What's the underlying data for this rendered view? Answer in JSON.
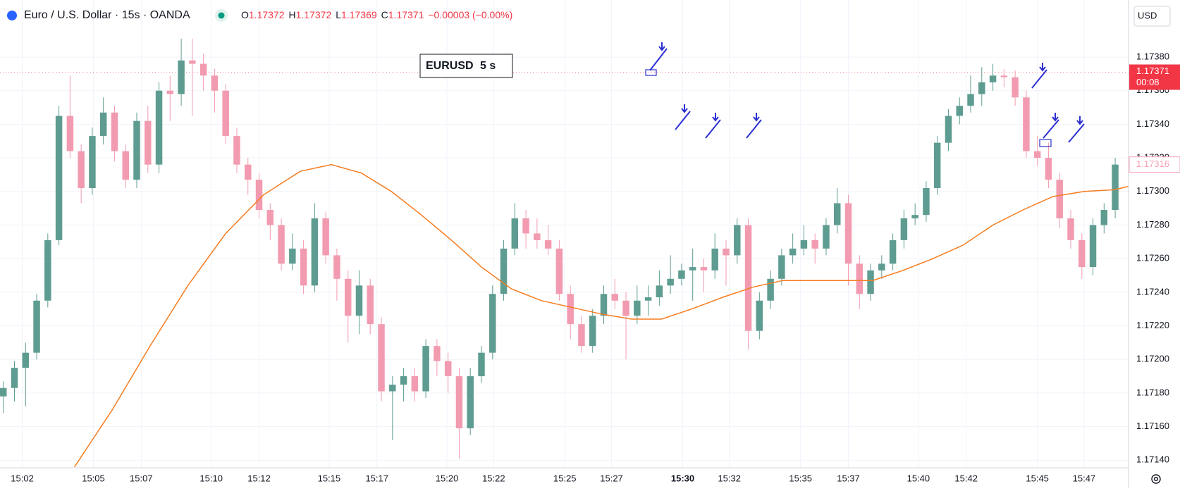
{
  "chart_data": {
    "type": "candlestick",
    "title": "Euro / U.S. Dollar · 15s · OANDA",
    "legend_items": [
      {
        "key": "O",
        "value": "1.17372"
      },
      {
        "key": "H",
        "value": "1.17372"
      },
      {
        "key": "L",
        "value": "1.17369"
      },
      {
        "key": "C",
        "value": "1.17371"
      }
    ],
    "change": "−0.00003 (−0.00%)",
    "currency": "USD",
    "inset": {
      "symbol": "EURUSD",
      "interval": "5 s"
    },
    "up_color": "#5e9c91",
    "down_color": "#f29bb0",
    "open": [
      1.17178,
      1.17183,
      1.17195,
      1.17204,
      1.17235,
      1.17271,
      1.17345,
      1.17324,
      1.17302,
      1.17333,
      1.17347,
      1.17324,
      1.17307,
      1.17342,
      1.17316,
      1.1736,
      1.17358,
      1.17378,
      1.17376,
      1.17369,
      1.1736,
      1.17333,
      1.17316,
      1.17307,
      1.17289,
      1.1728,
      1.17257,
      1.17266,
      1.17244,
      1.17284,
      1.17262,
      1.17248,
      1.17226,
      1.17244,
      1.17221,
      1.17181,
      1.17185,
      1.1719,
      1.17181,
      1.17208,
      1.17199,
      1.1719,
      1.17159,
      1.1719,
      1.17204,
      1.17239,
      1.17266,
      1.17284,
      1.17275,
      1.17271,
      1.17266,
      1.17239,
      1.17221,
      1.17208,
      1.17226,
      1.17239,
      1.17235,
      1.17226,
      1.17235,
      1.17237,
      1.17244,
      1.17248,
      1.17253,
      1.17255,
      1.17253,
      1.17266,
      1.17262,
      1.1728,
      1.17217,
      1.17235,
      1.17248,
      1.17262,
      1.17266,
      1.17271,
      1.17266,
      1.1728,
      1.17293,
      1.17257,
      1.17239,
      1.17253,
      1.17257,
      1.17271,
      1.17284,
      1.17286,
      1.17302,
      1.17329,
      1.17345,
      1.17351,
      1.17358,
      1.17365,
      1.17369,
      1.17368,
      1.17356,
      1.17324,
      1.1732,
      1.17307,
      1.17284,
      1.17271,
      1.17255,
      1.1728,
      1.17289
    ],
    "high": [
      1.17187,
      1.17199,
      1.1721,
      1.17239,
      1.17275,
      1.17351,
      1.17369,
      1.17328,
      1.17338,
      1.17356,
      1.17351,
      1.17328,
      1.17347,
      1.17351,
      1.17365,
      1.17369,
      1.17391,
      1.17391,
      1.17382,
      1.17373,
      1.17364,
      1.17338,
      1.1732,
      1.17311,
      1.17293,
      1.17284,
      1.17275,
      1.17271,
      1.17293,
      1.17288,
      1.17266,
      1.17253,
      1.17253,
      1.17248,
      1.17225,
      1.1719,
      1.17195,
      1.17195,
      1.17212,
      1.17212,
      1.17204,
      1.17195,
      1.17195,
      1.17208,
      1.17244,
      1.17271,
      1.17293,
      1.17289,
      1.17284,
      1.1728,
      1.17271,
      1.17244,
      1.17226,
      1.1723,
      1.17244,
      1.17248,
      1.1724,
      1.17244,
      1.17244,
      1.17253,
      1.17262,
      1.17257,
      1.17266,
      1.1726,
      1.17275,
      1.17271,
      1.17284,
      1.17284,
      1.1724,
      1.17253,
      1.17266,
      1.17275,
      1.1728,
      1.17275,
      1.17284,
      1.17302,
      1.17298,
      1.17262,
      1.17257,
      1.17262,
      1.17275,
      1.17289,
      1.17293,
      1.17306,
      1.17333,
      1.17349,
      1.17356,
      1.17369,
      1.17374,
      1.17376,
      1.17373,
      1.17372,
      1.1736,
      1.17333,
      1.17329,
      1.17311,
      1.17289,
      1.17275,
      1.17284,
      1.17293,
      1.1732
    ],
    "low": [
      1.17168,
      1.17175,
      1.17172,
      1.172,
      1.17231,
      1.17268,
      1.1732,
      1.17293,
      1.17298,
      1.17328,
      1.17318,
      1.17302,
      1.17302,
      1.17311,
      1.17311,
      1.17342,
      1.17351,
      1.17345,
      1.1736,
      1.17347,
      1.17328,
      1.17311,
      1.17298,
      1.17284,
      1.17271,
      1.17253,
      1.17253,
      1.17239,
      1.1724,
      1.17257,
      1.17235,
      1.1721,
      1.17215,
      1.17215,
      1.17175,
      1.17152,
      1.17175,
      1.17175,
      1.17177,
      1.1719,
      1.1718,
      1.17141,
      1.17155,
      1.17186,
      1.172,
      1.17235,
      1.17262,
      1.17266,
      1.17266,
      1.17262,
      1.17235,
      1.17212,
      1.17204,
      1.17204,
      1.17221,
      1.1723,
      1.172,
      1.17221,
      1.17226,
      1.17232,
      1.17239,
      1.17244,
      1.17235,
      1.1724,
      1.17248,
      1.17244,
      1.17257,
      1.17206,
      1.17212,
      1.1723,
      1.17244,
      1.17257,
      1.17262,
      1.17257,
      1.17262,
      1.17275,
      1.17244,
      1.1723,
      1.17235,
      1.17248,
      1.17253,
      1.17266,
      1.1728,
      1.17282,
      1.17298,
      1.17324,
      1.1734,
      1.17347,
      1.17351,
      1.1736,
      1.17362,
      1.17351,
      1.1732,
      1.17315,
      1.17302,
      1.17278,
      1.17266,
      1.17248,
      1.1725,
      1.17275,
      1.17284
    ],
    "close": [
      1.17183,
      1.17195,
      1.17204,
      1.17235,
      1.17271,
      1.17345,
      1.17324,
      1.17302,
      1.17333,
      1.17347,
      1.17324,
      1.17307,
      1.17342,
      1.17316,
      1.1736,
      1.17358,
      1.17378,
      1.17376,
      1.17369,
      1.1736,
      1.17333,
      1.17316,
      1.17307,
      1.17289,
      1.1728,
      1.17257,
      1.17266,
      1.17244,
      1.17284,
      1.17262,
      1.17248,
      1.17226,
      1.17244,
      1.17221,
      1.17181,
      1.17185,
      1.1719,
      1.17181,
      1.17208,
      1.17199,
      1.1719,
      1.17159,
      1.1719,
      1.17204,
      1.17239,
      1.17266,
      1.17284,
      1.17275,
      1.17271,
      1.17266,
      1.17239,
      1.17221,
      1.17208,
      1.17226,
      1.17239,
      1.17235,
      1.17226,
      1.17235,
      1.17237,
      1.17244,
      1.17248,
      1.17253,
      1.17255,
      1.17253,
      1.17266,
      1.17262,
      1.1728,
      1.17217,
      1.17235,
      1.17248,
      1.17262,
      1.17266,
      1.17271,
      1.17266,
      1.1728,
      1.17293,
      1.17257,
      1.17239,
      1.17253,
      1.17257,
      1.17271,
      1.17284,
      1.17286,
      1.17302,
      1.17329,
      1.17345,
      1.17351,
      1.17358,
      1.17365,
      1.17369,
      1.17368,
      1.17356,
      1.17324,
      1.1732,
      1.17307,
      1.17284,
      1.17271,
      1.17255,
      1.1728,
      1.17289,
      1.17316
    ],
    "moving_average": {
      "color": "#f57c1f",
      "x": [
        6.4,
        9.8,
        13.2,
        16.6,
        20,
        23.4,
        26.7,
        29.5,
        32.2,
        34.9,
        37.6,
        40.3,
        43,
        45.7,
        48.4,
        51.1,
        53.8,
        56.5,
        59.2,
        61.9,
        64.7,
        67.4,
        70.1,
        72.8,
        75.5,
        78.2,
        80.9,
        83.6,
        86.3,
        89,
        91.7,
        94.4,
        97.2,
        99.9,
        101.2
      ],
      "values": [
        1.17136,
        1.1717,
        1.17208,
        1.17244,
        1.17275,
        1.17298,
        1.17312,
        1.17316,
        1.17311,
        1.173,
        1.17286,
        1.17271,
        1.17255,
        1.17242,
        1.17235,
        1.17231,
        1.17227,
        1.17224,
        1.17224,
        1.1723,
        1.17237,
        1.17243,
        1.17247,
        1.17247,
        1.17247,
        1.17247,
        1.17253,
        1.1726,
        1.17268,
        1.1728,
        1.17289,
        1.17297,
        1.173,
        1.17301,
        1.17303
      ]
    },
    "xlim": [
      -0.3,
      101.2
    ],
    "xticks": [
      {
        "value": 1.7,
        "label": "15:02"
      },
      {
        "value": 8.1,
        "label": "15:05"
      },
      {
        "value": 12.4,
        "label": "15:07"
      },
      {
        "value": 18.7,
        "label": "15:10"
      },
      {
        "value": 23,
        "label": "15:12"
      },
      {
        "value": 29.3,
        "label": "15:15"
      },
      {
        "value": 33.6,
        "label": "15:17"
      },
      {
        "value": 39.9,
        "label": "15:20"
      },
      {
        "value": 44.1,
        "label": "15:22"
      },
      {
        "value": 50.5,
        "label": "15:25"
      },
      {
        "value": 54.7,
        "label": "15:27"
      },
      {
        "value": 61.1,
        "label": "15:30"
      },
      {
        "value": 65.3,
        "label": "15:32"
      },
      {
        "value": 71.7,
        "label": "15:35"
      },
      {
        "value": 76,
        "label": "15:37"
      },
      {
        "value": 82.3,
        "label": "15:40"
      },
      {
        "value": 86.6,
        "label": "15:42"
      },
      {
        "value": 93,
        "label": "15:45"
      },
      {
        "value": 97.2,
        "label": "15:47"
      }
    ],
    "ylim": [
      1.171355,
      1.17414
    ],
    "yticks": [
      {
        "value": 1.1714,
        "label": "1.17140"
      },
      {
        "value": 1.1716,
        "label": "1.17160"
      },
      {
        "value": 1.1718,
        "label": "1.17180"
      },
      {
        "value": 1.172,
        "label": "1.17200"
      },
      {
        "value": 1.1722,
        "label": "1.17220"
      },
      {
        "value": 1.1724,
        "label": "1.17240"
      },
      {
        "value": 1.1726,
        "label": "1.17260"
      },
      {
        "value": 1.1728,
        "label": "1.17280"
      },
      {
        "value": 1.173,
        "label": "1.17300"
      },
      {
        "value": 1.1732,
        "label": "1.17320"
      },
      {
        "value": 1.1734,
        "label": "1.17340"
      },
      {
        "value": 1.1736,
        "label": "1.17360"
      },
      {
        "value": 1.1738,
        "label": "1.17380"
      }
    ],
    "last_price": {
      "value": 1.17371,
      "label": "1.17371",
      "countdown": "00:08",
      "color": "#f23645"
    },
    "marker_price": {
      "value": 1.17316,
      "label": "1.17316",
      "color": "#f7a1b3"
    },
    "grid": true
  }
}
